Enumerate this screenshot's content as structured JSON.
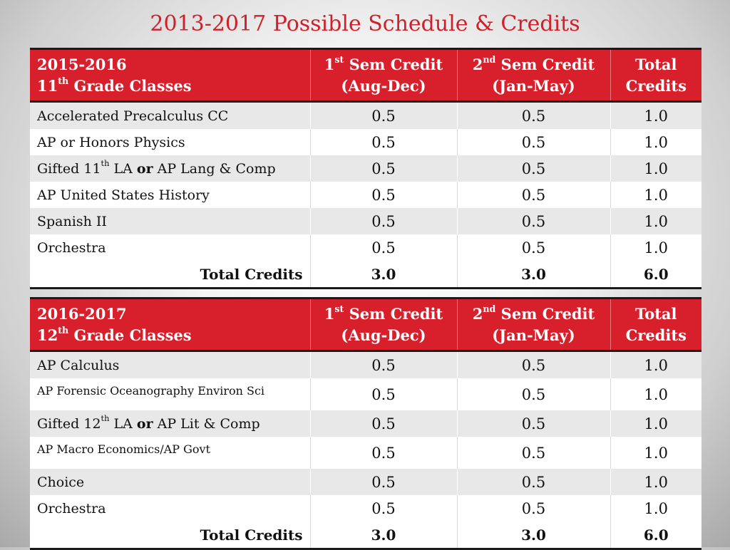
{
  "title": "2013-2017 Possible Schedule & Credits",
  "colors": {
    "title": "#d0202a",
    "header_bg": "#d8202c",
    "row_alt": "#e8e8e8"
  },
  "tables": [
    {
      "year": "2015-2016",
      "grade_num": "11",
      "grade_sup": "th",
      "grade_rest": " Grade Classes",
      "col1_num": "1",
      "col1_sup": "st",
      "col1_rest": " Sem Credit",
      "col1_sub": "(Aug-Dec)",
      "col2_num": "2",
      "col2_sup": "nd",
      "col2_rest": " Sem Credit",
      "col2_sub": "(Jan-May)",
      "col3_line1": "Total",
      "col3_line2": "Credits",
      "rows": [
        {
          "name": "Accelerated Precalculus CC",
          "sem1": "0.5",
          "sem2": "0.5",
          "total": "1.0"
        },
        {
          "name": "AP or Honors Physics",
          "sem1": "0.5",
          "sem2": "0.5",
          "total": "1.0"
        },
        {
          "name_pre": "Gifted 11",
          "name_sup": "th",
          "name_mid": " LA ",
          "name_or": "or",
          "name_post": " AP Lang & Comp",
          "sem1": "0.5",
          "sem2": "0.5",
          "total": "1.0"
        },
        {
          "name": "AP United States History",
          "sem1": "0.5",
          "sem2": "0.5",
          "total": "1.0"
        },
        {
          "name": "Spanish II",
          "sem1": "0.5",
          "sem2": "0.5",
          "total": "1.0"
        },
        {
          "name": "Orchestra",
          "sem1": "0.5",
          "sem2": "0.5",
          "total": "1.0"
        }
      ],
      "total_label": "Total Credits",
      "total_sem1": "3.0",
      "total_sem2": "3.0",
      "total_all": "6.0"
    },
    {
      "year": "2016-2017",
      "grade_num": "12",
      "grade_sup": "th",
      "grade_rest": " Grade Classes",
      "col1_num": "1",
      "col1_sup": "st",
      "col1_rest": " Sem Credit",
      "col1_sub": "(Aug-Dec)",
      "col2_num": "2",
      "col2_sup": "nd",
      "col2_rest": " Sem Credit",
      "col2_sub": "(Jan-May)",
      "col3_line1": "Total",
      "col3_line2": "Credits",
      "rows": [
        {
          "name": "AP Calculus",
          "sem1": "0.5",
          "sem2": "0.5",
          "total": "1.0"
        },
        {
          "name": "AP Forensic Oceanography Environ Sci",
          "sem1": "0.5",
          "sem2": "0.5",
          "total": "1.0"
        },
        {
          "name_pre": "Gifted 12",
          "name_sup": "th",
          "name_mid": " LA ",
          "name_or": "or",
          "name_post": " AP Lit  & Comp",
          "sem1": "0.5",
          "sem2": "0.5",
          "total": "1.0"
        },
        {
          "name": "AP Macro Economics/AP Govt",
          "sem1": "0.5",
          "sem2": "0.5",
          "total": "1.0"
        },
        {
          "name": "Choice",
          "sem1": "0.5",
          "sem2": "0.5",
          "total": "1.0"
        },
        {
          "name": "Orchestra",
          "sem1": "0.5",
          "sem2": "0.5",
          "total": "1.0"
        }
      ],
      "total_label": "Total Credits",
      "total_sem1": "3.0",
      "total_sem2": "3.0",
      "total_all": "6.0"
    }
  ]
}
